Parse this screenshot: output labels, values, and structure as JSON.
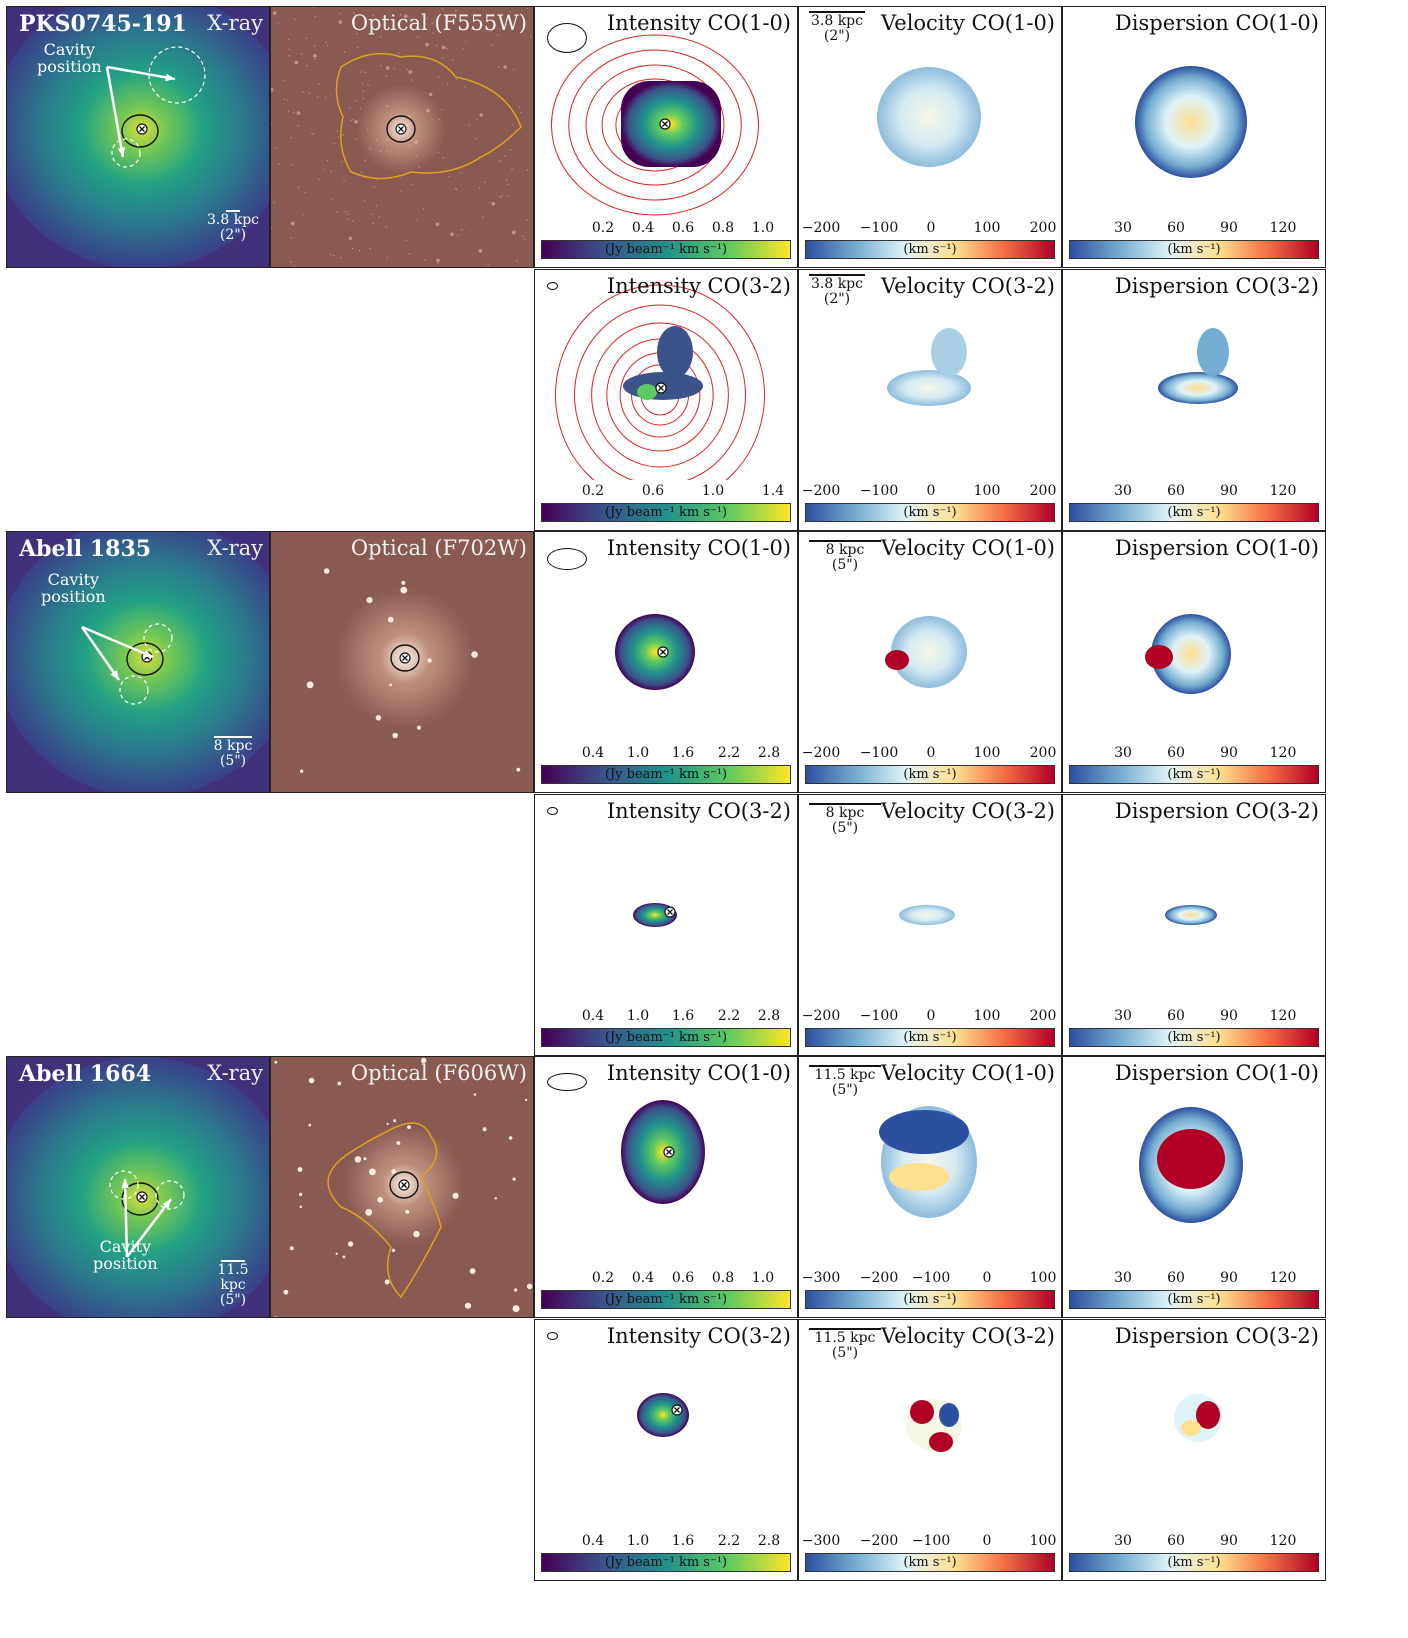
{
  "rows": [
    {
      "name": "PKS0745-191",
      "xray_label": "X-ray",
      "optical_label": "Optical (F555W)",
      "cavity_label": [
        "Cavity",
        "position"
      ],
      "scale_text": [
        "3.8 kpc",
        "(2\")"
      ],
      "co10": {
        "intensity_title": "Intensity CO(1-0)",
        "velocity_title": "Velocity CO(1-0)",
        "dispersion_title": "Dispersion CO(1-0)",
        "intensity_ticks": [
          "0.2",
          "0.4",
          "0.6",
          "0.8",
          "1.0"
        ],
        "velocity_ticks": [
          "−200",
          "−100",
          "0",
          "100",
          "200"
        ],
        "dispersion_ticks": [
          "30",
          "60",
          "90",
          "120"
        ]
      },
      "co32": {
        "intensity_title": "Intensity CO(3-2)",
        "velocity_title": "Velocity CO(3-2)",
        "dispersion_title": "Dispersion CO(3-2)",
        "intensity_ticks": [
          "0.2",
          "0.6",
          "1.0",
          "1.4"
        ],
        "velocity_ticks": [
          "−200",
          "−100",
          "0",
          "100",
          "200"
        ],
        "dispersion_ticks": [
          "30",
          "60",
          "90",
          "120"
        ]
      }
    },
    {
      "name": "Abell 1835",
      "xray_label": "X-ray",
      "optical_label": "Optical (F702W)",
      "cavity_label": [
        "Cavity",
        "position"
      ],
      "scale_text": [
        "8 kpc",
        "(5\")"
      ],
      "co10": {
        "intensity_title": "Intensity CO(1-0)",
        "velocity_title": "Velocity CO(1-0)",
        "dispersion_title": "Dispersion CO(1-0)",
        "intensity_ticks": [
          "0.4",
          "1.0",
          "1.6",
          "2.2",
          "2.8"
        ],
        "velocity_ticks": [
          "−200",
          "−100",
          "0",
          "100",
          "200"
        ],
        "dispersion_ticks": [
          "30",
          "60",
          "90",
          "120"
        ]
      },
      "co32": {
        "intensity_title": "Intensity CO(3-2)",
        "velocity_title": "Velocity CO(3-2)",
        "dispersion_title": "Dispersion CO(3-2)",
        "intensity_ticks": [
          "0.4",
          "1.0",
          "1.6",
          "2.2",
          "2.8"
        ],
        "velocity_ticks": [
          "−200",
          "−100",
          "0",
          "100",
          "200"
        ],
        "dispersion_ticks": [
          "30",
          "60",
          "90",
          "120"
        ]
      }
    },
    {
      "name": "Abell 1664",
      "xray_label": "X-ray",
      "optical_label": "Optical (F606W)",
      "cavity_label": [
        "Cavity",
        "position"
      ],
      "scale_text": [
        "11.5 kpc",
        "(5\")"
      ],
      "co10": {
        "intensity_title": "Intensity CO(1-0)",
        "velocity_title": "Velocity CO(1-0)",
        "dispersion_title": "Dispersion CO(1-0)",
        "intensity_ticks": [
          "0.2",
          "0.4",
          "0.6",
          "0.8",
          "1.0"
        ],
        "velocity_ticks": [
          "−300",
          "−200",
          "−100",
          "0",
          "100"
        ],
        "dispersion_ticks": [
          "30",
          "60",
          "90",
          "120"
        ]
      },
      "co32": {
        "intensity_title": "Intensity CO(3-2)",
        "velocity_title": "Velocity CO(3-2)",
        "dispersion_title": "Dispersion CO(3-2)",
        "intensity_ticks": [
          "0.4",
          "1.0",
          "1.6",
          "2.2",
          "2.8"
        ],
        "velocity_ticks": [
          "−300",
          "−200",
          "−100",
          "0",
          "100"
        ],
        "dispersion_ticks": [
          "30",
          "60",
          "90",
          "120"
        ]
      }
    }
  ],
  "colorbar_labels": {
    "intensity": "(Jy beam⁻¹ km s⁻¹)",
    "velocity": "(km s⁻¹)",
    "dispersion": "(km s⁻¹)"
  },
  "colors": {
    "viridis": [
      "#440154",
      "#3b528b",
      "#21918c",
      "#5ec962",
      "#fde725"
    ],
    "rdylbu_r": [
      "#2c4fa0",
      "#74add1",
      "#e0f3f8",
      "#fee090",
      "#f46d43",
      "#b00026"
    ],
    "optical_bg": "#8a5a52",
    "contour_orange": "#e0a020",
    "contour_red": "#e02020"
  }
}
